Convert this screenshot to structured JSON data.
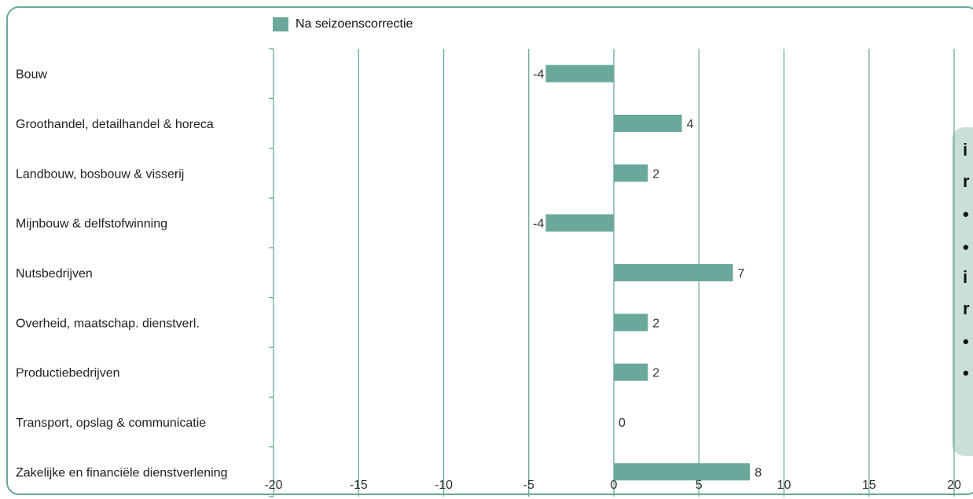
{
  "chart_data": {
    "type": "bar",
    "orientation": "horizontal",
    "categories": [
      "Bouw",
      "Groothandel, detailhandel & horeca",
      "Landbouw, bosbouw & visserij",
      "Mijnbouw & delfstofwinning",
      "Nutsbedrijven",
      "Overheid, maatschap. dienstverl.",
      "Productiebedrijven",
      "Transport, opslag & communicatie",
      "Zakelijke en financiële dienstverlening"
    ],
    "series": [
      {
        "name": "Na seizoenscorrectie",
        "values": [
          -4,
          4,
          2,
          -4,
          7,
          2,
          2,
          0,
          8
        ]
      }
    ],
    "xlim": [
      -20,
      20
    ],
    "xticks": [
      "-20",
      "-15",
      "-10",
      "-5",
      "0",
      "5",
      "10",
      "15",
      "20"
    ],
    "grid": true,
    "legend_position": "top",
    "colors": {
      "bar": "#6aa89b",
      "grid": "#6aa89b",
      "frame": "#6aa89b"
    }
  },
  "side_panel": {
    "glyphs": [
      "i",
      "r",
      "•",
      "•",
      "i",
      "r",
      "•",
      "•"
    ]
  }
}
